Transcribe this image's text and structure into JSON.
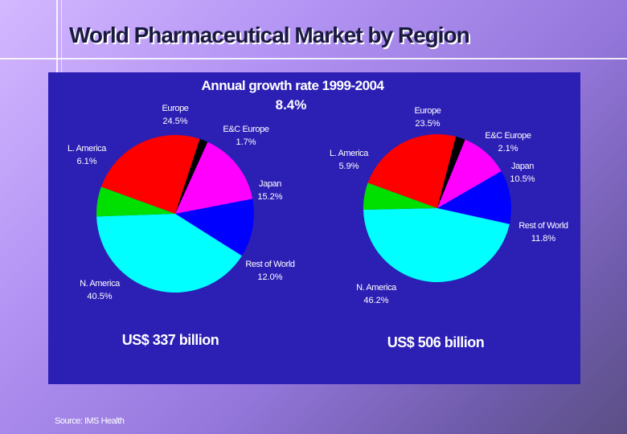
{
  "title": "World Pharmaceutical Market by Region",
  "subtitle": "Annual growth rate 1999-2004",
  "growth_rate": "8.4%",
  "source": "Source: IMS Health",
  "colors": {
    "background": "#2c1fb4",
    "europe": "#ff0000",
    "ec_europe": "#000000",
    "japan": "#ff00ff",
    "rest_of_world": "#0000ff",
    "n_america": "#00ffff",
    "l_america": "#00e000"
  },
  "chart_data": [
    {
      "type": "pie",
      "title": "",
      "total": "US$ 337 billion",
      "slices": [
        {
          "label": "Europe",
          "value": 24.5,
          "value_label": "24.5%"
        },
        {
          "label": "E&C Europe",
          "value": 1.7,
          "value_label": "1.7%"
        },
        {
          "label": "Japan",
          "value": 15.2,
          "value_label": "15.2%"
        },
        {
          "label": "Rest of World",
          "value": 12.0,
          "value_label": "12.0%"
        },
        {
          "label": "N. America",
          "value": 40.5,
          "value_label": "40.5%"
        },
        {
          "label": "L. America",
          "value": 6.1,
          "value_label": "6.1%"
        }
      ]
    },
    {
      "type": "pie",
      "title": "",
      "total": "US$ 506 billion",
      "slices": [
        {
          "label": "Europe",
          "value": 23.5,
          "value_label": "23.5%"
        },
        {
          "label": "E&C Europe",
          "value": 2.1,
          "value_label": "2.1%"
        },
        {
          "label": "Japan",
          "value": 10.5,
          "value_label": "10.5%"
        },
        {
          "label": "Rest of World",
          "value": 11.8,
          "value_label": "11.8%"
        },
        {
          "label": "N. America",
          "value": 46.2,
          "value_label": "46.2%"
        },
        {
          "label": "L. America",
          "value": 5.9,
          "value_label": "5.9%"
        }
      ]
    }
  ]
}
